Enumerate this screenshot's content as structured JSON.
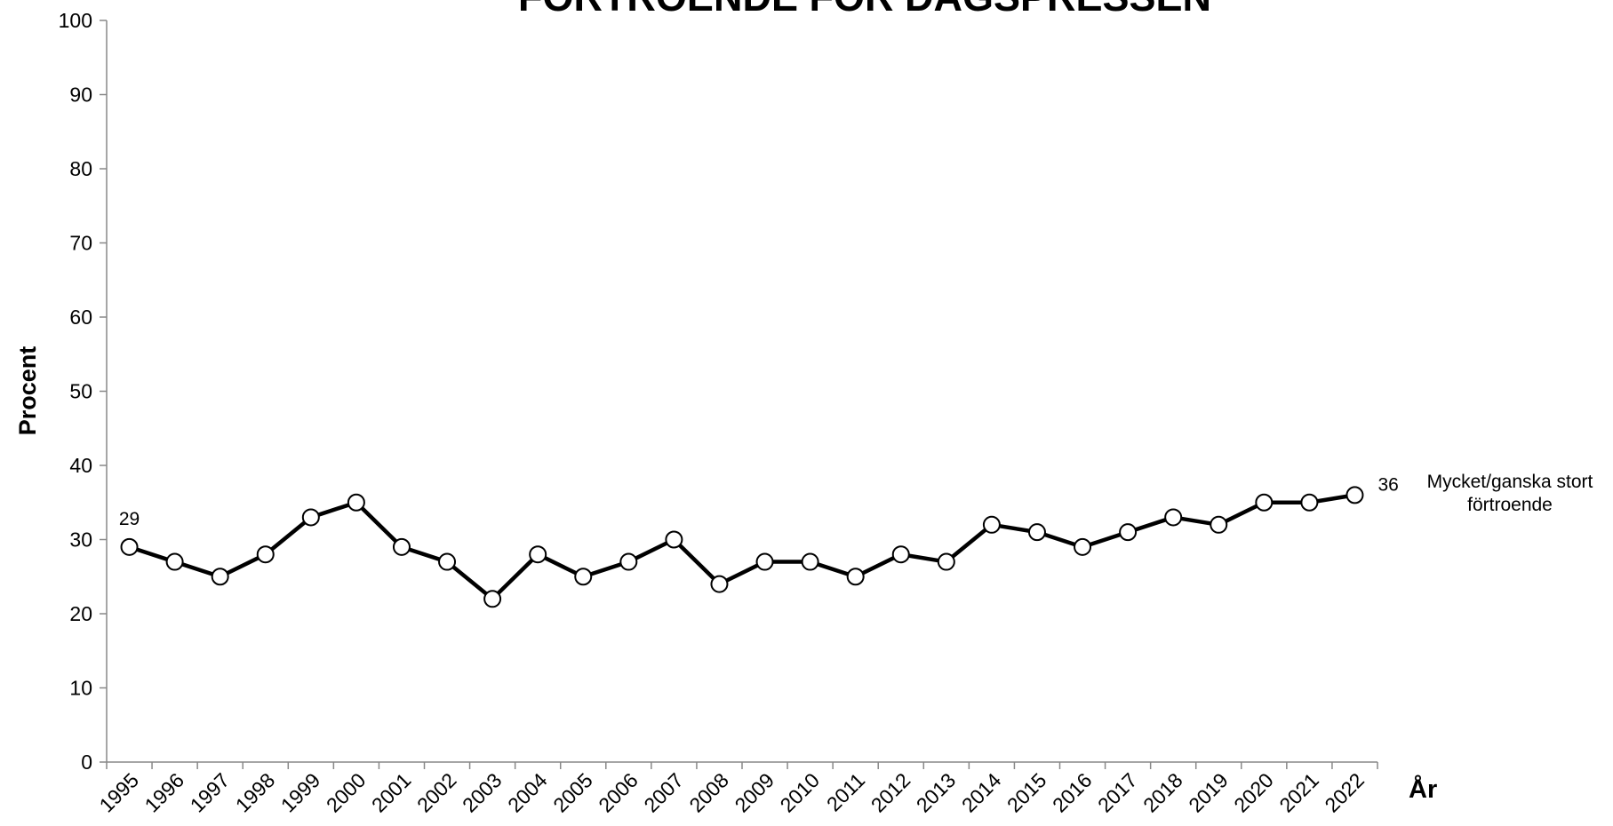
{
  "chart_data": {
    "type": "line",
    "title": "FÖRTROENDE FÖR DAGSPRESSEN",
    "y_label": "Procent",
    "x_label": "År",
    "categories": [
      "1995",
      "1996",
      "1997",
      "1998",
      "1999",
      "2000",
      "2001",
      "2002",
      "2003",
      "2004",
      "2005",
      "2006",
      "2007",
      "2008",
      "2009",
      "2010",
      "2011",
      "2012",
      "2013",
      "2014",
      "2015",
      "2016",
      "2017",
      "2018",
      "2019",
      "2020",
      "2021",
      "2022"
    ],
    "series": [
      {
        "name": "Mycket/ganska stort förtroende",
        "color": "#000000",
        "values": [
          29,
          27,
          25,
          28,
          33,
          35,
          29,
          27,
          22,
          28,
          25,
          27,
          30,
          24,
          27,
          27,
          25,
          28,
          27,
          32,
          31,
          29,
          31,
          33,
          32,
          35,
          35,
          36
        ]
      }
    ],
    "ylim": [
      0,
      100
    ],
    "yticks": [
      0,
      10,
      20,
      30,
      40,
      50,
      60,
      70,
      80,
      90,
      100
    ],
    "grid": false
  }
}
